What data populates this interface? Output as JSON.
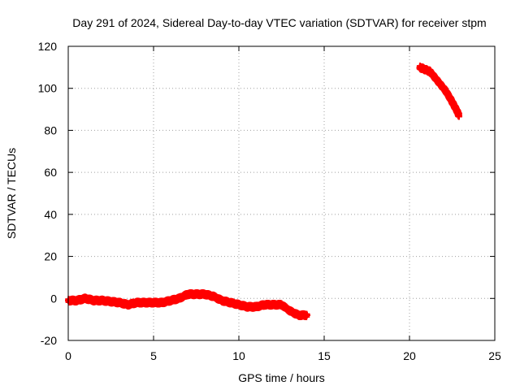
{
  "chart_data": {
    "type": "scatter",
    "title": "Day 291 of 2024, Sidereal Day-to-day VTEC variation (SDTVAR) for receiver stpm",
    "xlabel": "GPS time / hours",
    "ylabel": "SDTVAR / TECUs",
    "xlim": [
      0,
      25
    ],
    "ylim": [
      -20,
      120
    ],
    "xticks": [
      0,
      5,
      10,
      15,
      20,
      25
    ],
    "yticks": [
      -20,
      0,
      20,
      40,
      60,
      80,
      100,
      120
    ],
    "grid": true,
    "series": [
      {
        "name": "SDTVAR",
        "color": "#ff0000",
        "marker": "plus",
        "x": [
          0.0,
          0.5,
          1.0,
          1.5,
          2.0,
          2.5,
          3.0,
          3.5,
          4.0,
          4.5,
          5.0,
          5.5,
          6.0,
          6.5,
          7.0,
          7.5,
          8.0,
          8.5,
          9.0,
          9.5,
          10.0,
          10.5,
          11.0,
          11.5,
          12.0,
          12.5,
          13.0,
          13.5,
          14.0,
          20.6,
          20.9,
          21.2,
          21.5,
          21.8,
          22.1,
          22.4,
          22.6,
          22.8,
          22.9
        ],
        "y": [
          -1,
          -1,
          0,
          -1,
          -1,
          -1.5,
          -2,
          -3,
          -2,
          -2,
          -2,
          -2,
          -1,
          0,
          2,
          2,
          2,
          1,
          -1,
          -2,
          -3,
          -4,
          -4,
          -3,
          -3,
          -3,
          -6,
          -8,
          -8,
          110,
          109,
          108,
          105,
          102,
          99,
          95,
          92,
          89,
          87
        ]
      }
    ]
  }
}
